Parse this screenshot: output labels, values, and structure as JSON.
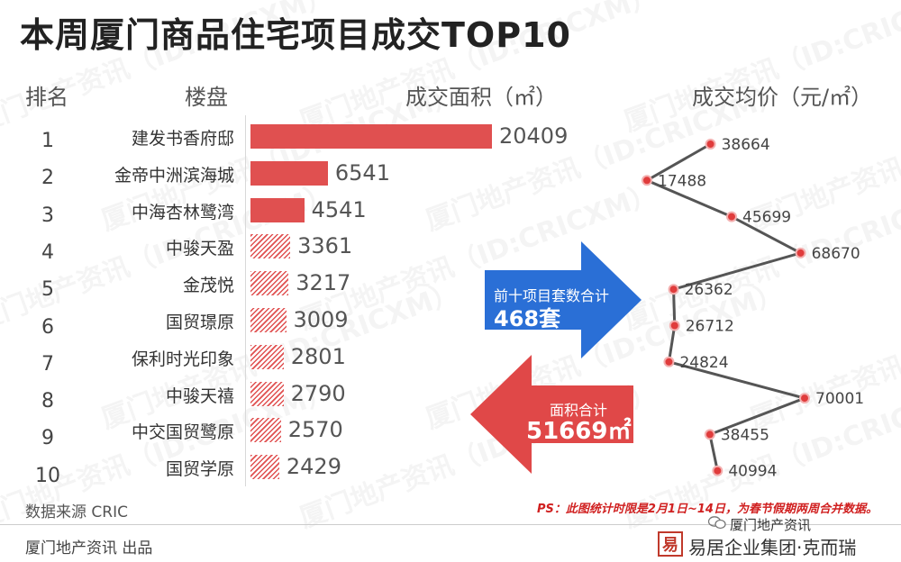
{
  "title": "本周厦门商品住宅项目成交TOP10",
  "headers": {
    "rank": "排名",
    "project": "楼盘",
    "area": "成交面积（㎡）",
    "price": "成交均价（元/㎡）"
  },
  "chart_data": {
    "type": "bar",
    "title": "本周厦门商品住宅项目成交TOP10",
    "ranks": [
      "1",
      "2",
      "3",
      "4",
      "5",
      "6",
      "7",
      "8",
      "9",
      "10"
    ],
    "categories": [
      "建发书香府邸",
      "金帝中洲滨海城",
      "中海杏林鹭湾",
      "中骏天盈",
      "金茂悦",
      "国贸璟原",
      "保利时光印象",
      "中骏天禧",
      "中交国贸鹭原",
      "国贸学原"
    ],
    "series": [
      {
        "name": "成交面积（㎡）",
        "values": [
          20409,
          6541,
          4541,
          3361,
          3217,
          3009,
          2801,
          2790,
          2570,
          2429
        ]
      },
      {
        "name": "成交均价（元/㎡）",
        "values": [
          38664,
          17488,
          45699,
          68670,
          26362,
          26712,
          24824,
          70001,
          38455,
          40994
        ]
      }
    ],
    "bar_fill": [
      "solid",
      "solid",
      "solid",
      "hatch",
      "hatch",
      "hatch",
      "hatch",
      "hatch",
      "hatch",
      "hatch"
    ],
    "colors": {
      "bar": "#e05050",
      "line": "#555555",
      "point": "#e03c3c"
    }
  },
  "arrows": {
    "sets_label": "前十项目套数合计",
    "sets_value": "468套",
    "area_label": "面积合计",
    "area_value": "51669㎡",
    "colors": {
      "blue": "#2a6fd6",
      "red": "#e04848"
    }
  },
  "watermark": "厦门地产资讯（ID:CRICXM）",
  "source": "数据来源  CRIC",
  "note": "PS：此图统计时限是2月1日~14日，为春节假期两周合并数据。",
  "footer": {
    "publisher": "厦门地产资讯  出品",
    "wechat": "厦门地产资讯",
    "logo_seal": "易",
    "logo_text": "易居企业集团·克而瑞"
  }
}
